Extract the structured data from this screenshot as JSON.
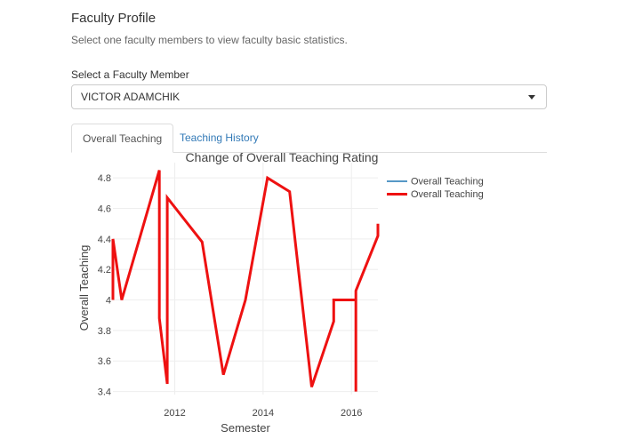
{
  "header": {
    "title": "Faculty Profile",
    "subtitle": "Select one faculty members to view faculty basic statistics."
  },
  "selector": {
    "label": "Select a Faculty Member",
    "value": "VICTOR ADAMCHIK"
  },
  "tabs": [
    {
      "label": "Overall Teaching",
      "active": true
    },
    {
      "label": "Teaching History",
      "active": false
    }
  ],
  "chart_data": {
    "type": "line",
    "title": "Change of Overall Teaching Rating",
    "xlabel": "Semester",
    "ylabel": "Overall Teaching",
    "xlim": [
      2010.6,
      2016.6
    ],
    "ylim": [
      3.38,
      4.9
    ],
    "x_ticks": [
      2012,
      2014,
      2016
    ],
    "y_ticks": [
      3.4,
      3.6,
      3.8,
      4,
      4.2,
      4.4,
      4.6,
      4.8
    ],
    "y_tick_labels": [
      "3.4",
      "3.6",
      "3.8",
      "4",
      "4.2",
      "4.4",
      "4.6",
      "4.8"
    ],
    "x_tick_labels": [
      "2012",
      "2014",
      "2016"
    ],
    "grid": true,
    "legend_position": "top-right",
    "series": [
      {
        "name": "Overall Teaching",
        "color": "#1f77b4",
        "width": 1.5,
        "x": [],
        "y": []
      },
      {
        "name": "Overall Teaching",
        "color": "#ee1111",
        "width": 3,
        "x": [
          2010.6,
          2010.6,
          2010.8,
          2011.65,
          2011.65,
          2011.65,
          2011.83,
          2011.83,
          2012.62,
          2013.1,
          2013.6,
          2014.1,
          2014.6,
          2015.1,
          2015.6,
          2015.6,
          2016.1,
          2016.1,
          2016.1,
          2016.1,
          2016.6,
          2016.6
        ],
        "y": [
          4.0,
          4.4,
          4.0,
          4.85,
          4.85,
          3.88,
          3.45,
          4.67,
          4.38,
          3.51,
          4.0,
          4.8,
          4.71,
          3.43,
          3.86,
          4.0,
          4.0,
          3.4,
          4.06,
          4.06,
          4.42,
          4.5
        ]
      }
    ]
  }
}
